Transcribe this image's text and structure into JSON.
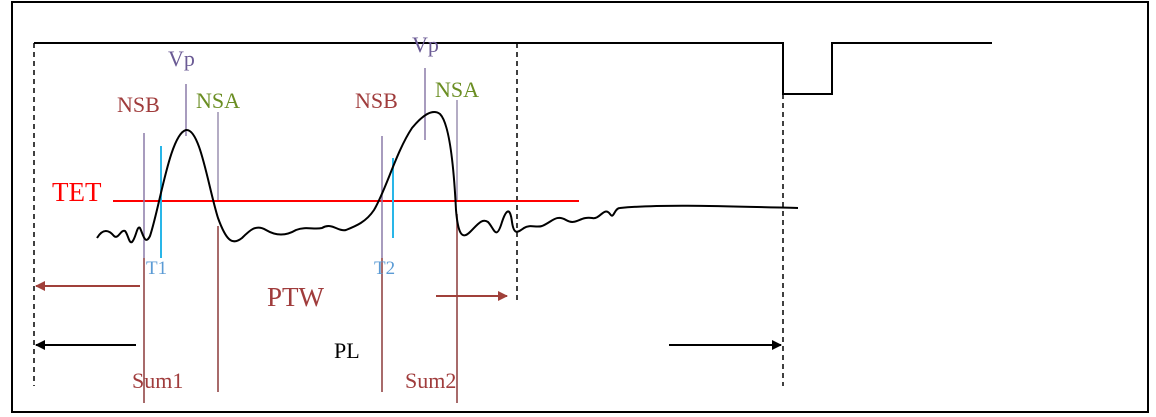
{
  "labels": {
    "vp": "Vp",
    "nsb": "NSB",
    "nsa": "NSA",
    "tet": "TET",
    "t1": "T1",
    "t2": "T2",
    "ptw": "PTW",
    "pl": "PL",
    "sum1": "Sum1",
    "sum2": "Sum2"
  },
  "colors": {
    "frame": "#000000",
    "signal": "#000000",
    "threshold": "#ff0000",
    "threshold_label": "#ff0000",
    "window_lines": "#8b3a3a",
    "window_label": "#a03c3c",
    "peak_marker": "#8a7aa8",
    "peak_label": "#6b5b95",
    "nsa_marker": "#9a90b0",
    "nsa_label": "#6b8e23",
    "trigger_marker": "#29b6e8",
    "trigger_label": "#5b9bd5",
    "ptw_arrow": "#a0403a",
    "pl_arrow": "#000000"
  }
}
